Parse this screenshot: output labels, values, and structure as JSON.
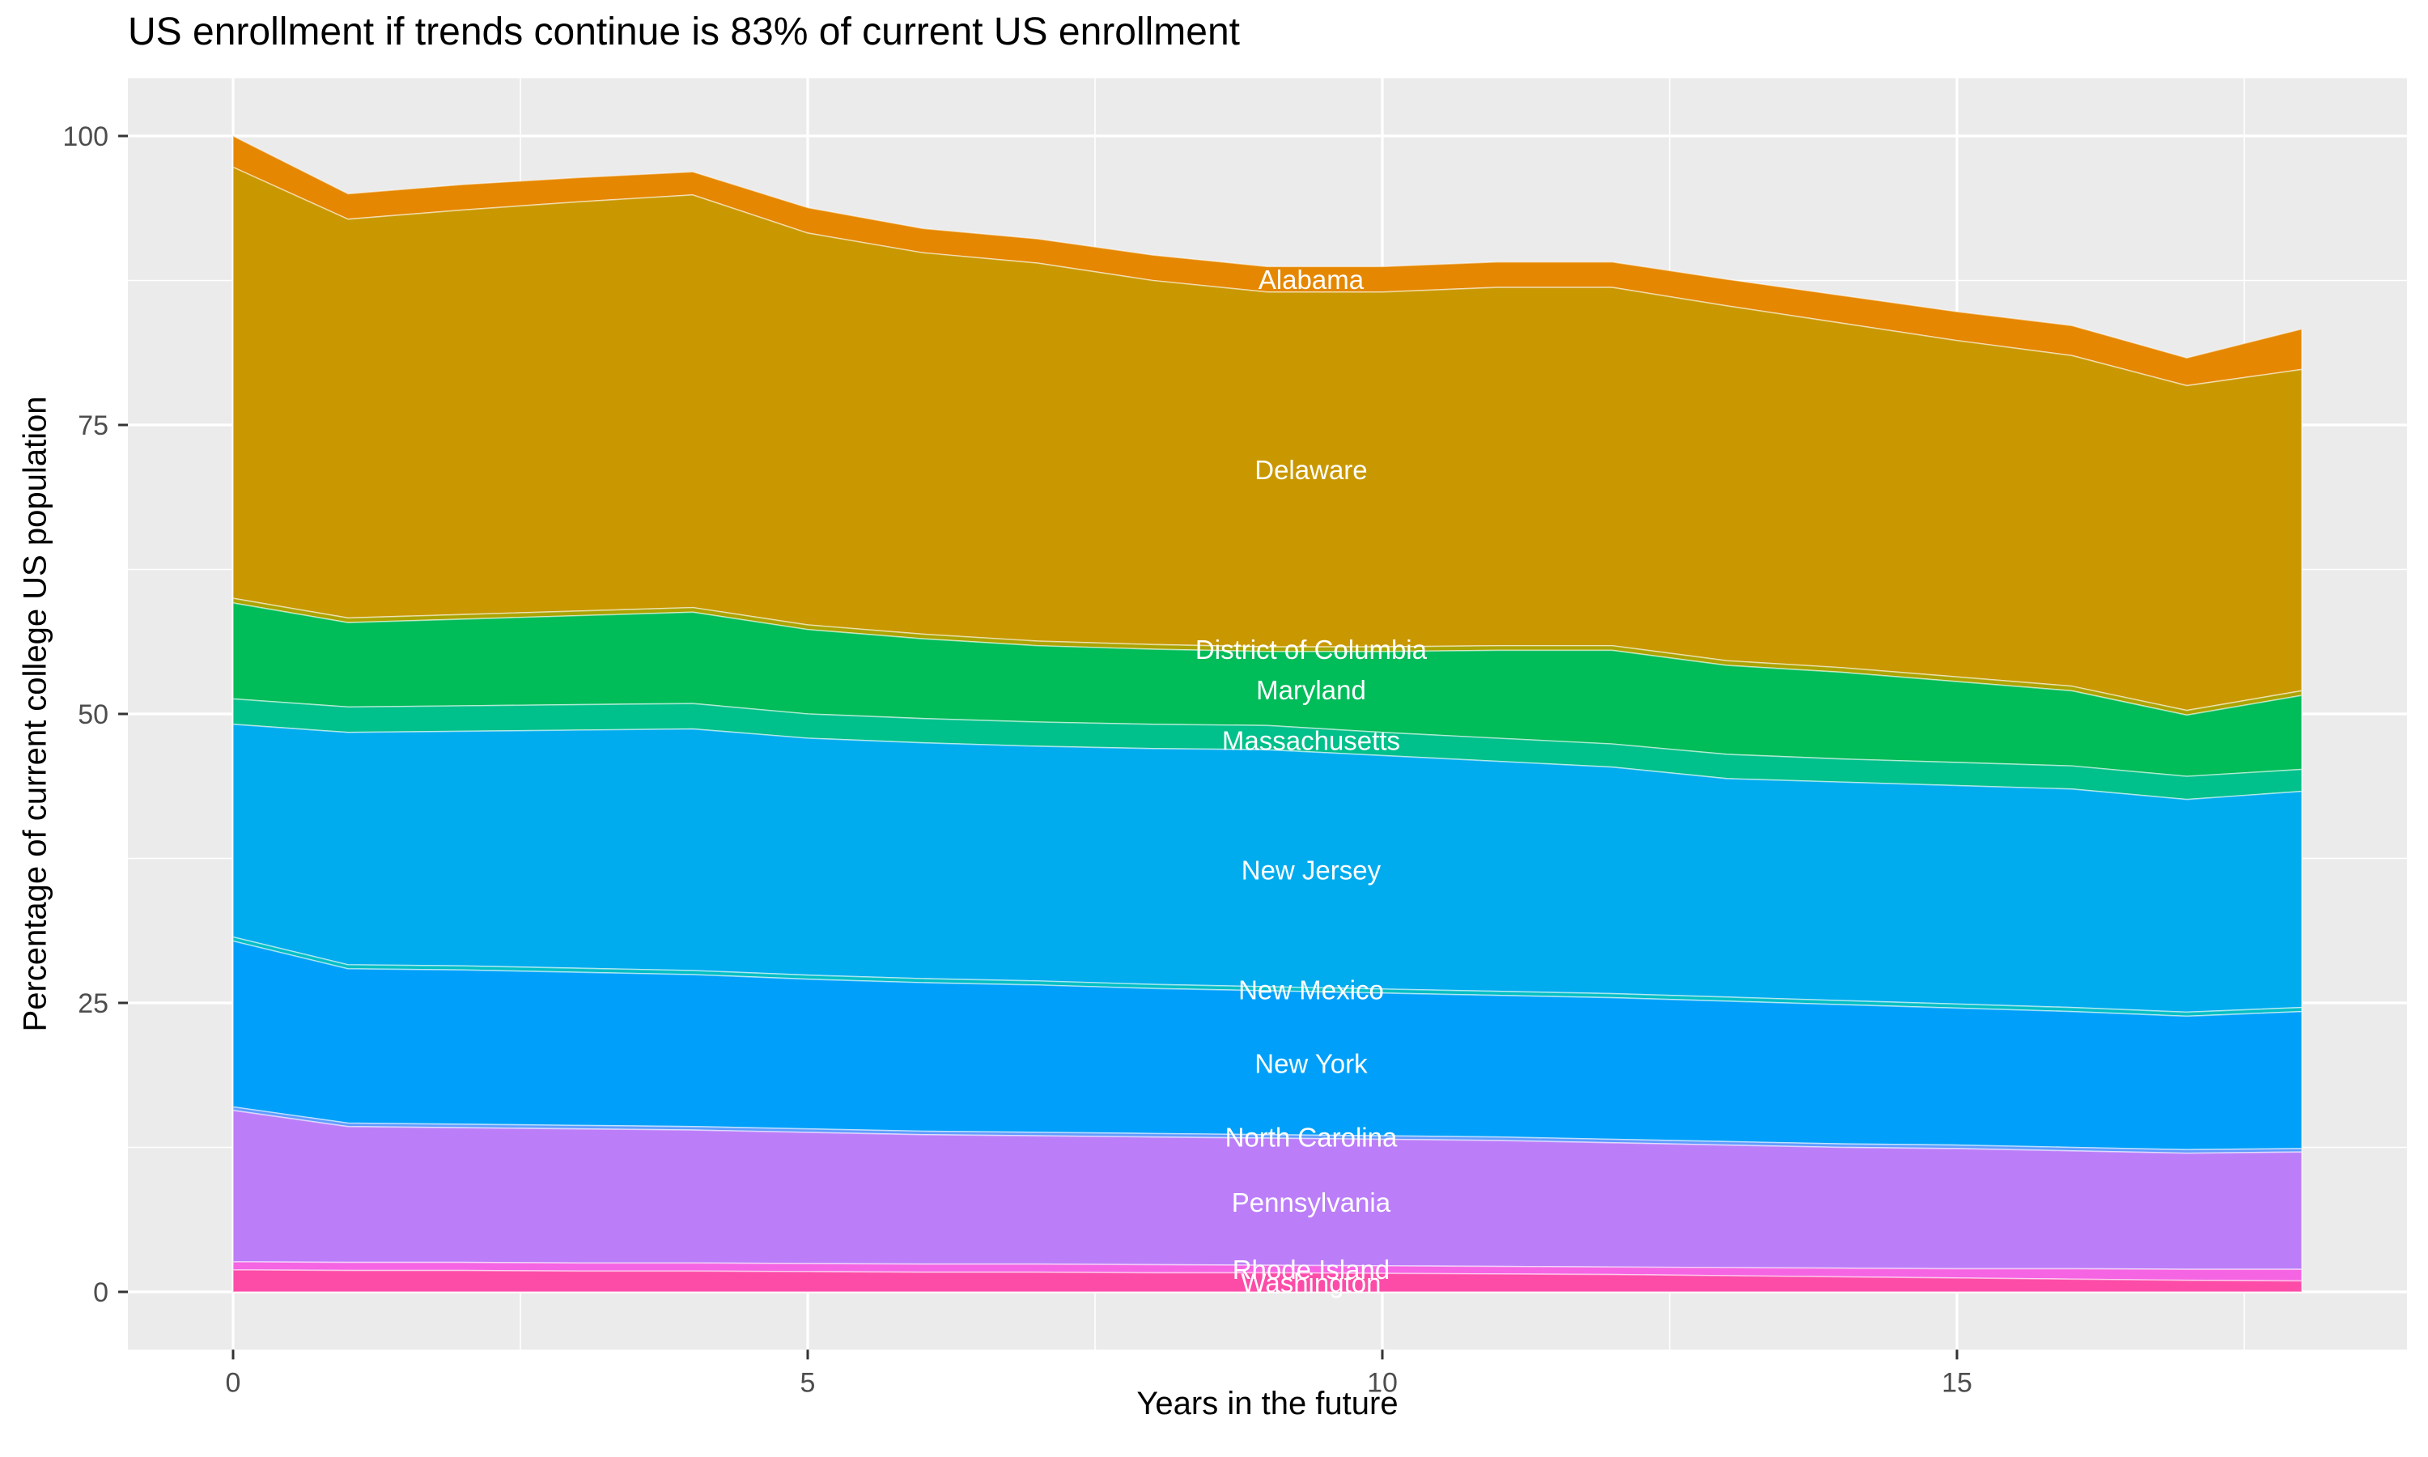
{
  "title": "US enrollment if trends continue is 83% of current US enrollment",
  "chart_data": {
    "type": "area",
    "stacked": true,
    "stack_order": "first-series-on-top",
    "title": "US enrollment if trends continue is 83% of current US enrollment",
    "xlabel": "Years in the future",
    "ylabel": "Percentage of current college US population",
    "x": [
      0,
      1,
      2,
      3,
      4,
      5,
      6,
      7,
      8,
      9,
      10,
      11,
      12,
      13,
      14,
      15,
      16,
      17,
      18
    ],
    "x_ticks": [
      0,
      5,
      10,
      15
    ],
    "x_minor_ticks": [
      2.5,
      7.5,
      12.5,
      17.5
    ],
    "y_ticks": [
      0,
      25,
      50,
      75,
      100
    ],
    "y_minor_ticks": [
      12.5,
      37.5,
      62.5,
      87.5
    ],
    "xlim": [
      -0.915,
      18.915
    ],
    "ylim": [
      -5,
      105
    ],
    "grid": true,
    "legend_position": "none",
    "panel_bg": "#EBEBEB",
    "grid_color": "#FFFFFF",
    "tick_color": "#333333",
    "tick_label_color": "#4D4D4D",
    "area_label_color": "#FFFFFF",
    "area_label_x_year": 9.38,
    "total_start_pct": 100.0,
    "total_end_pct": 83.3,
    "series": [
      {
        "name": "Alabama",
        "color": "#E58700",
        "values": [
          2.7,
          2.2,
          2.2,
          2.1,
          2.0,
          2.2,
          2.1,
          2.1,
          2.2,
          2.2,
          2.2,
          2.2,
          2.2,
          2.3,
          2.4,
          2.5,
          2.6,
          2.4,
          3.5
        ]
      },
      {
        "name": "Delaware",
        "color": "#C99800",
        "values": [
          37.3,
          34.5,
          35.0,
          35.4,
          35.7,
          33.9,
          33.0,
          32.7,
          31.5,
          30.7,
          30.7,
          31.0,
          31.0,
          30.7,
          29.8,
          29.1,
          28.6,
          28.1,
          27.8
        ]
      },
      {
        "name": "District of Columbia",
        "color": "#ABA300",
        "values": [
          0.4,
          0.4,
          0.4,
          0.4,
          0.4,
          0.4,
          0.4,
          0.4,
          0.4,
          0.4,
          0.4,
          0.4,
          0.4,
          0.4,
          0.4,
          0.4,
          0.4,
          0.4,
          0.4
        ]
      },
      {
        "name": "Maryland",
        "color": "#00BC59",
        "values": [
          8.3,
          7.3,
          7.5,
          7.7,
          7.9,
          7.3,
          6.9,
          6.6,
          6.5,
          6.4,
          7.0,
          7.6,
          8.1,
          7.7,
          7.5,
          7.0,
          6.5,
          5.3,
          6.4
        ]
      },
      {
        "name": "Massachusetts",
        "color": "#00C08B",
        "values": [
          2.2,
          2.2,
          2.2,
          2.2,
          2.2,
          2.1,
          2.1,
          2.1,
          2.1,
          2.1,
          2.0,
          2.0,
          2.0,
          2.1,
          2.0,
          2.0,
          2.0,
          2.0,
          1.9
        ]
      },
      {
        "name": "New Jersey",
        "color": "#00ACEE",
        "values": [
          18.4,
          20.1,
          20.3,
          20.6,
          20.9,
          20.5,
          20.4,
          20.3,
          20.4,
          20.5,
          20.2,
          19.9,
          19.6,
          18.9,
          18.9,
          18.9,
          18.9,
          18.4,
          18.7
        ]
      },
      {
        "name": "New Mexico",
        "color": "#00BFC4",
        "values": [
          0.35,
          0.35,
          0.35,
          0.35,
          0.35,
          0.35,
          0.35,
          0.35,
          0.35,
          0.35,
          0.35,
          0.35,
          0.35,
          0.35,
          0.35,
          0.35,
          0.35,
          0.35,
          0.35
        ]
      },
      {
        "name": "New York",
        "color": "#00A0FA",
        "values": [
          14.35,
          13.35,
          13.35,
          13.25,
          13.15,
          12.95,
          12.85,
          12.75,
          12.55,
          12.45,
          12.35,
          12.25,
          12.25,
          12.15,
          12.05,
          11.85,
          11.75,
          11.55,
          11.85
        ]
      },
      {
        "name": "North Carolina",
        "color": "#619CFF",
        "values": [
          0.3,
          0.3,
          0.3,
          0.3,
          0.3,
          0.3,
          0.3,
          0.3,
          0.3,
          0.3,
          0.3,
          0.3,
          0.3,
          0.3,
          0.3,
          0.3,
          0.3,
          0.3,
          0.3
        ]
      },
      {
        "name": "Pennsylvania",
        "color": "#BC7EF8",
        "values": [
          13.1,
          11.75,
          11.65,
          11.6,
          11.5,
          11.35,
          11.2,
          11.1,
          11.05,
          11.0,
          10.95,
          10.9,
          10.75,
          10.6,
          10.45,
          10.4,
          10.2,
          10.05,
          10.15
        ]
      },
      {
        "name": "Rhode Island",
        "color": "#F564E3",
        "values": [
          0.7,
          0.7,
          0.7,
          0.7,
          0.7,
          0.7,
          0.7,
          0.7,
          0.7,
          0.65,
          0.65,
          0.65,
          0.65,
          0.7,
          0.75,
          0.8,
          0.9,
          0.95,
          1.0
        ]
      },
      {
        "name": "Washington",
        "color": "#FC4CA8",
        "values": [
          1.9,
          1.85,
          1.85,
          1.8,
          1.8,
          1.75,
          1.7,
          1.7,
          1.65,
          1.65,
          1.6,
          1.55,
          1.5,
          1.4,
          1.3,
          1.2,
          1.1,
          1.0,
          0.95
        ]
      }
    ]
  }
}
